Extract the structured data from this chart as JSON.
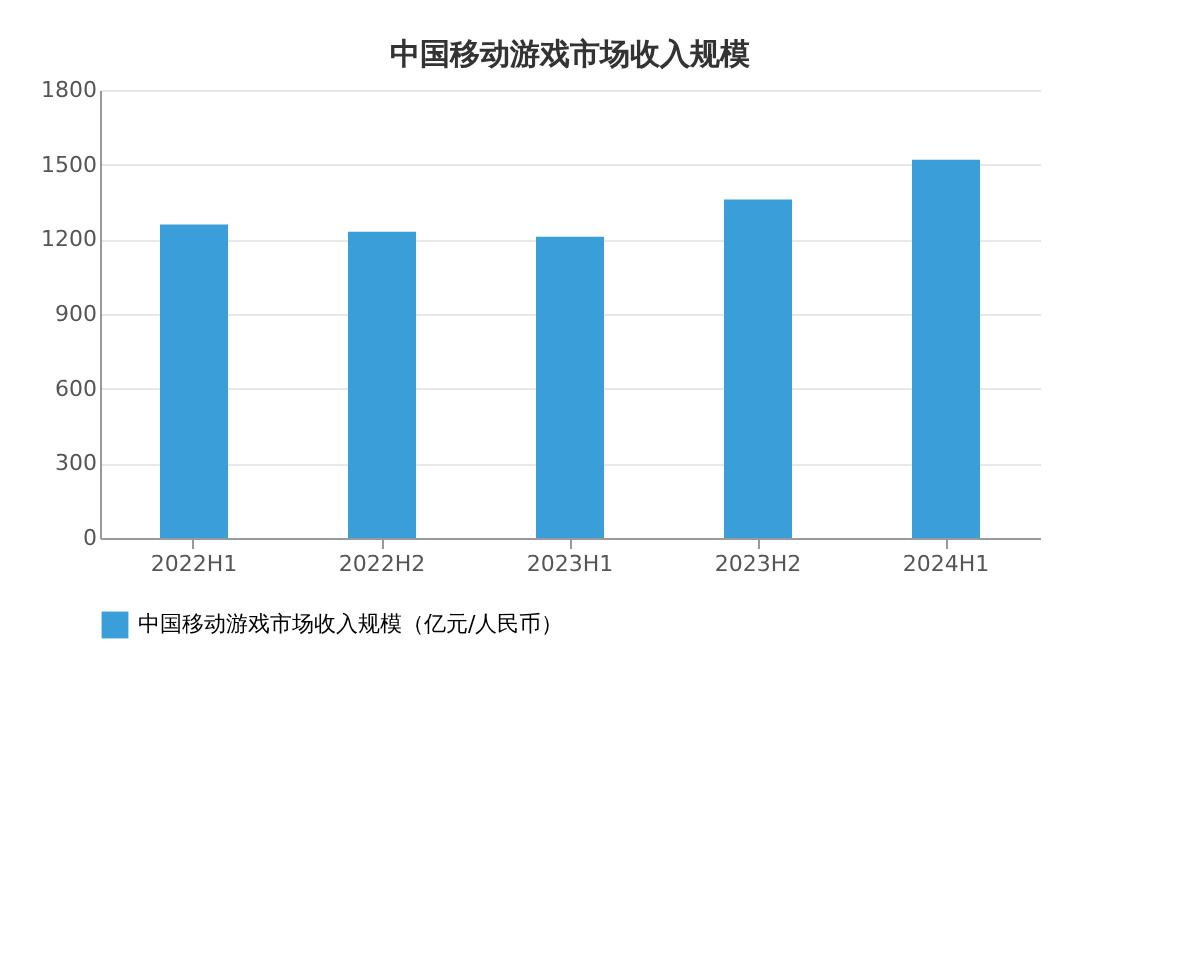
{
  "chart_data": {
    "type": "bar",
    "title": "中国移动游戏市场收入规模",
    "categories": [
      "2022H1",
      "2022H2",
      "2023H1",
      "2023H2",
      "2024H1"
    ],
    "series": [
      {
        "name": "中国移动游戏市场收入规模（亿元/人民币）",
        "color": "#3a9fd8",
        "values": [
          1260,
          1230,
          1210,
          1360,
          1520
        ]
      }
    ],
    "ylim": [
      0,
      1800
    ],
    "yticks": [
      0,
      300,
      600,
      900,
      1200,
      1500,
      1800
    ],
    "grid": "y",
    "legend": "bottom"
  }
}
